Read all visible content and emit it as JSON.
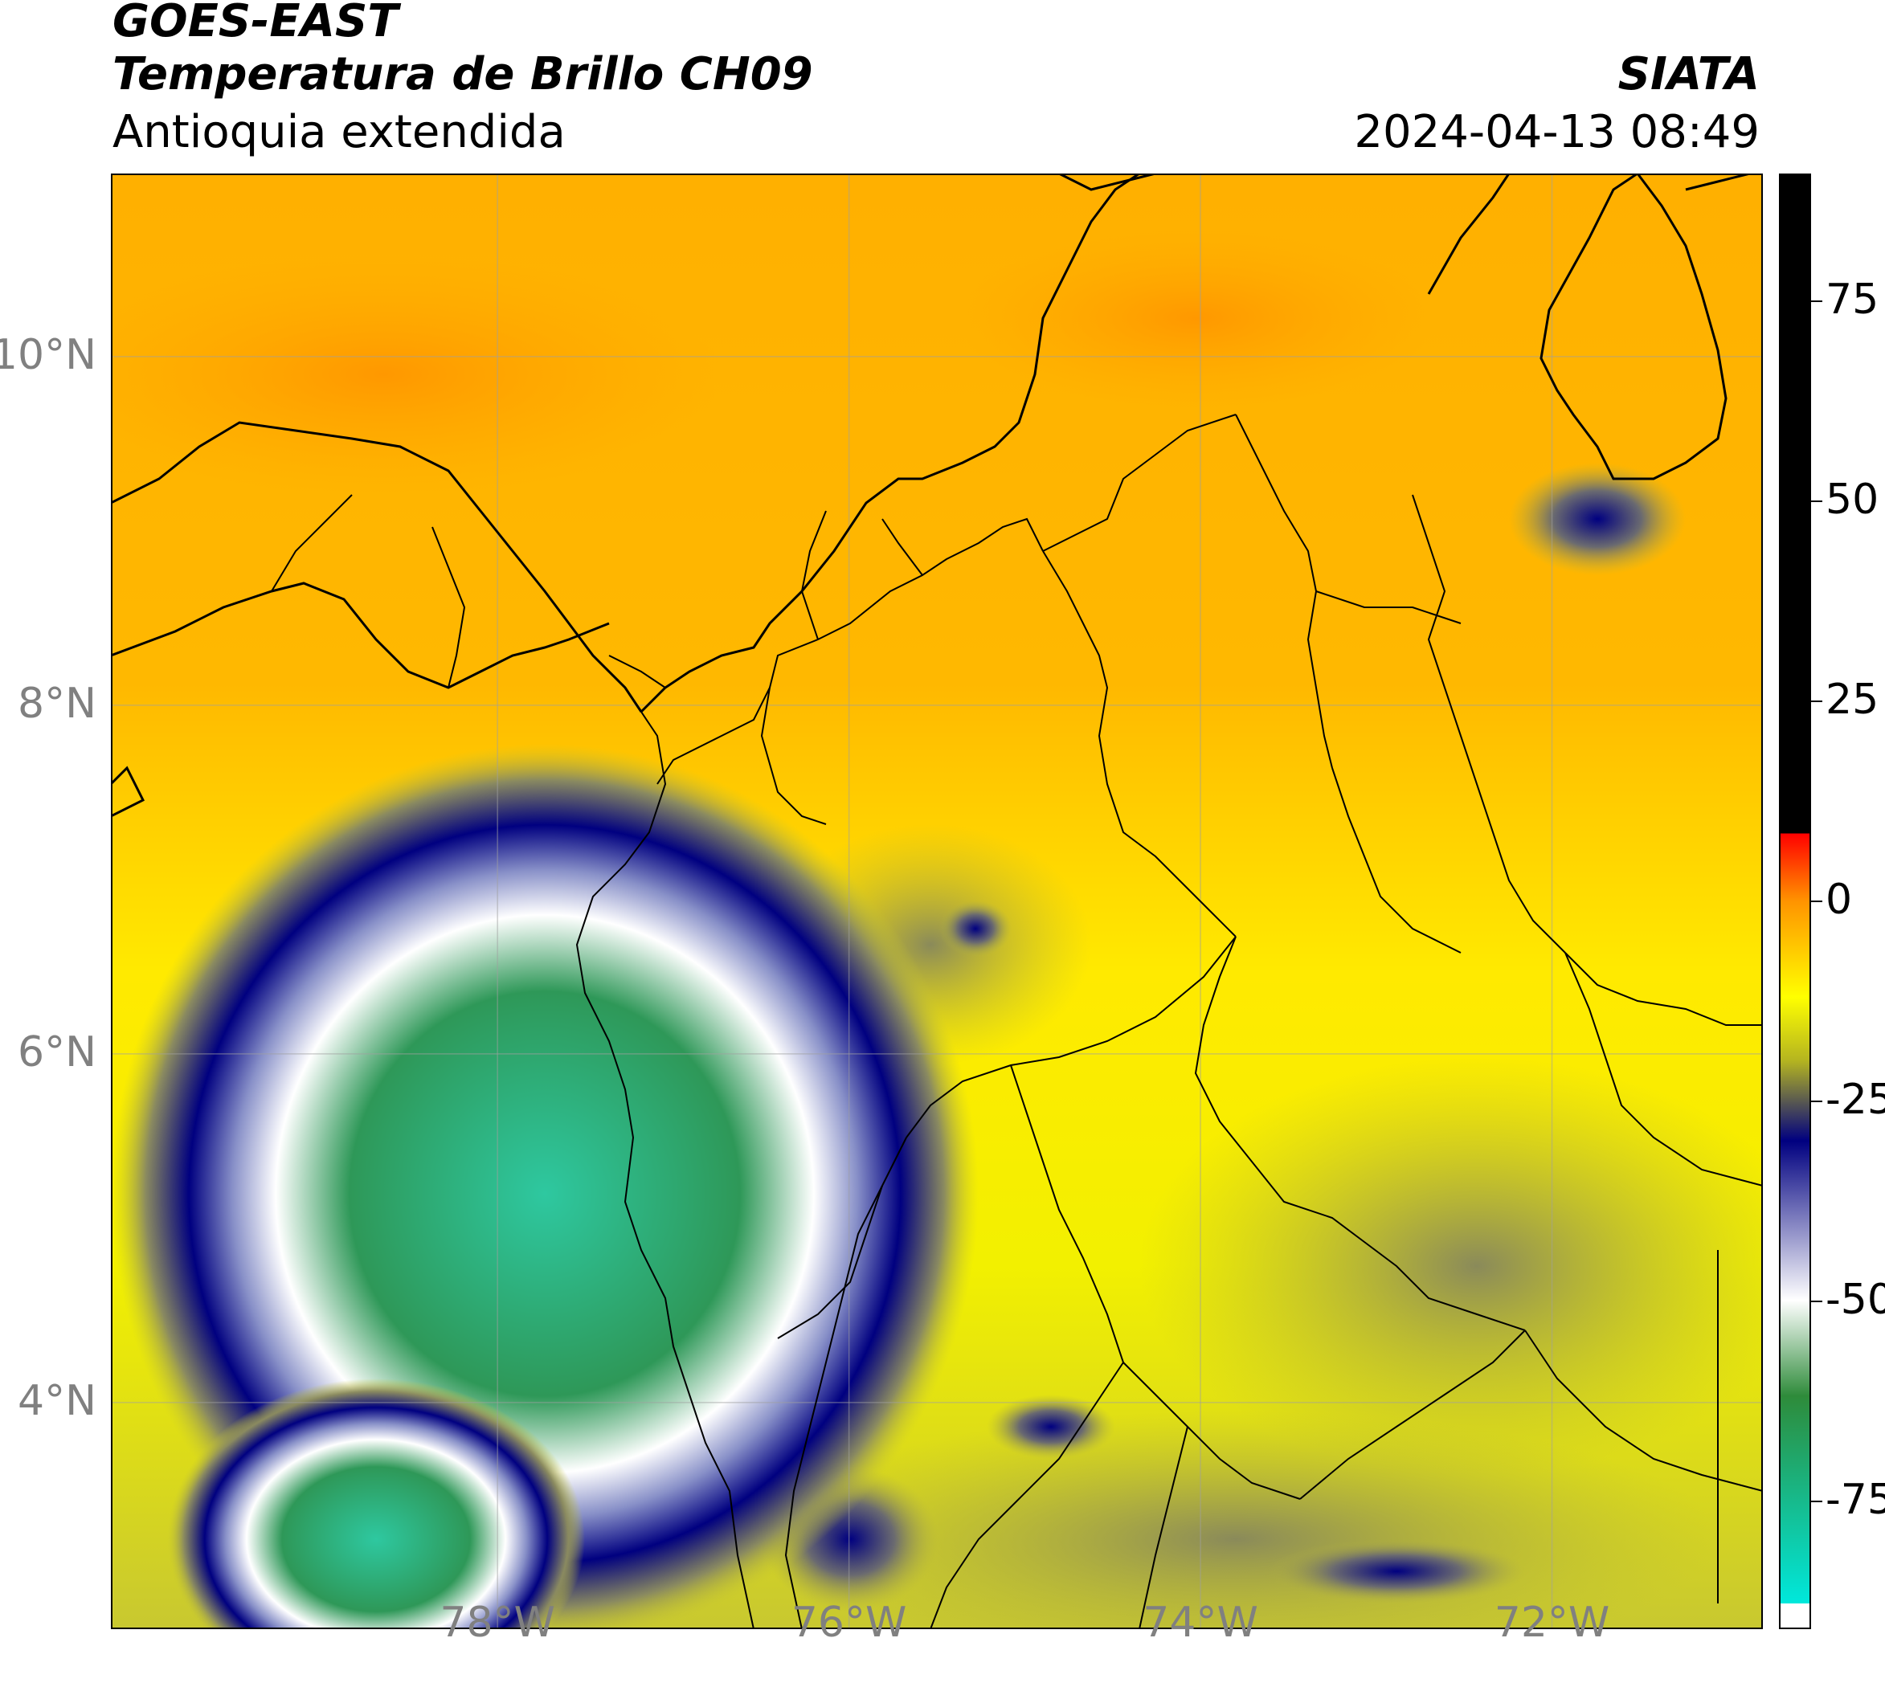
{
  "header": {
    "line1": "GOES-EAST",
    "line2": "Temperatura de Brillo CH09",
    "line3": "Antioquia extendida",
    "org": "SIATA",
    "datetime": "2024-04-13 08:49"
  },
  "map": {
    "lat_labels": [
      "10°N",
      "8°N",
      "6°N",
      "4°N"
    ],
    "lon_labels": [
      "78°W",
      "76°W",
      "74°W",
      "72°W"
    ],
    "extent": {
      "lon_min": -80.2,
      "lon_max": -70.8,
      "lat_min": 2.7,
      "lat_max": 11.05
    },
    "lat_values": [
      10,
      8,
      6,
      4
    ],
    "lon_values": [
      -78,
      -76,
      -74,
      -72
    ]
  },
  "colorbar": {
    "min": -91,
    "max": 91,
    "tick_values": [
      75,
      50,
      25,
      0,
      -25,
      -50,
      -75
    ],
    "tick_labels": [
      "75",
      "50",
      "25",
      "0",
      "-25",
      "-50",
      "-75"
    ],
    "colors": {
      "black": "#000000",
      "red": "#ff0000",
      "orange": "#ff9400",
      "yellow": "#ffff00",
      "olive": "#b4b420",
      "navy": "#000080",
      "white": "#ffffff",
      "green": "#2e8b3a",
      "cyan": "#00e8dc"
    }
  }
}
